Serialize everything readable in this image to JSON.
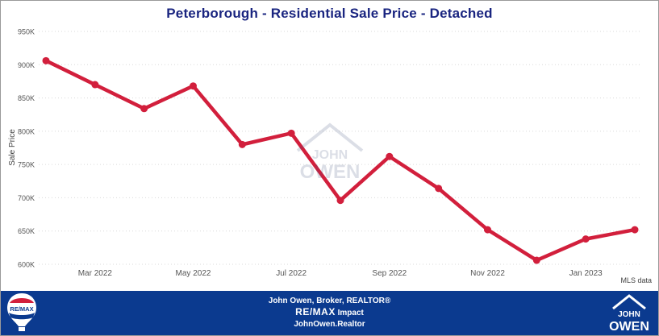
{
  "chart_data": {
    "type": "line",
    "title": "Peterborough - Residential Sale Price - Detached",
    "ylabel": "Sale Price",
    "xlabel": "",
    "ylim": [
      600000,
      950000
    ],
    "yticks": [
      600000,
      650000,
      700000,
      750000,
      800000,
      850000,
      900000,
      950000
    ],
    "ytick_labels": [
      "600K",
      "650K",
      "700K",
      "750K",
      "800K",
      "850K",
      "900K",
      "950K"
    ],
    "x": [
      "2022-02",
      "2022-03",
      "2022-04",
      "2022-05",
      "2022-06",
      "2022-07",
      "2022-08",
      "2022-09",
      "2022-10",
      "2022-11",
      "2022-12",
      "2023-01",
      "2023-02"
    ],
    "xtick_labels": [
      "Mar 2022",
      "May 2022",
      "Jul 2022",
      "Sep 2022",
      "Nov 2022",
      "Jan 2023"
    ],
    "xtick_positions": [
      "2022-03",
      "2022-05",
      "2022-07",
      "2022-09",
      "2022-11",
      "2023-01"
    ],
    "series": [
      {
        "values": [
          906000,
          870000,
          834000,
          868000,
          780000,
          797000,
          696000,
          762000,
          714000,
          652000,
          606000,
          638000,
          652000
        ]
      }
    ],
    "grid": true,
    "legend": "none",
    "line_color": "#d21f3c"
  },
  "footer": {
    "line1": "John Owen, Broker, REALTOR®",
    "brand": "RE/MAX",
    "brand_suffix": "Impact",
    "website": "JohnOwen.Realtor",
    "background_color": "#0b3a8f",
    "remax_logo_text": "RE/MAX",
    "owen_logo_line1": "JOHN",
    "owen_logo_line2": "OWEN"
  },
  "source_note": "MLS data",
  "watermark": {
    "line1": "JOHN",
    "line2": "OWEN"
  },
  "colors": {
    "title": "#1a2580",
    "grid": "#d9d9d9",
    "axis_text": "#555555"
  }
}
